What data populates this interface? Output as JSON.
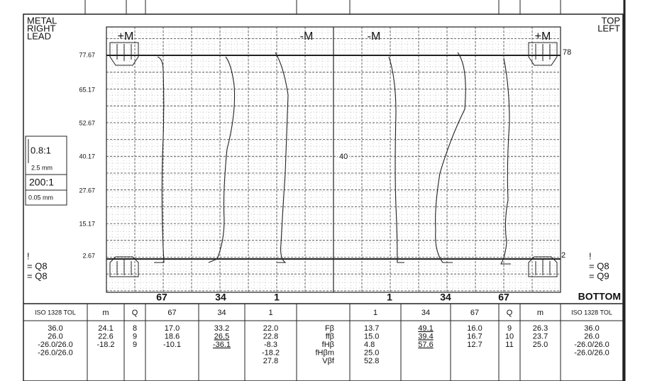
{
  "header": {
    "left_title": [
      "METAL",
      "RIGHT",
      "LEAD"
    ],
    "right_title": [
      "TOP",
      "LEFT"
    ]
  },
  "chart": {
    "y_labels": [
      "77.67",
      "65.17",
      "52.67",
      "40.17",
      "27.67",
      "15.17",
      "2.67"
    ],
    "markers": [
      "+M",
      "-M",
      "-M",
      "+M"
    ],
    "right_labels": [
      "78",
      "2"
    ],
    "center_label": "40",
    "scale": [
      "0.8:1",
      "2.5 mm",
      "200:1",
      "0.05 mm"
    ],
    "bottom_labels": [
      "67",
      "34",
      "1",
      "1",
      "34",
      "67"
    ],
    "bottom_title": "BOTTOM",
    "left_quality": [
      "!",
      "= Q8",
      "= Q8"
    ],
    "right_quality": [
      "!",
      "= Q8",
      "= Q9"
    ]
  },
  "table": {
    "header": [
      "ISO 1328 TOL",
      "m",
      "Q",
      "67",
      "34",
      "1",
      "1",
      "34",
      "67",
      "Q",
      "m",
      "ISO 1328 TOL"
    ],
    "columns": [
      [
        "36.0",
        "26.0",
        "-26.0/26.0",
        "-26.0/26.0"
      ],
      [
        "24.1",
        "22.6",
        "-18.2"
      ],
      [
        "8",
        "9",
        "9"
      ],
      [
        "17.0",
        "18.6",
        "-10.1"
      ],
      [
        "33.2",
        "26.5",
        "-36.1"
      ],
      [
        "22.0",
        "22.8",
        "-8.3",
        "-18.2",
        "27.8"
      ],
      [
        "Fβ",
        "ffβ",
        "fHβ",
        "fHβm",
        "Vβf"
      ],
      [
        "13.7",
        "15.0",
        "4.8",
        "25.0",
        "52.8"
      ],
      [
        "49.1",
        "39.4",
        "57.6"
      ],
      [
        "16.0",
        "16.7",
        "12.7"
      ],
      [
        "9",
        "10",
        "11"
      ],
      [
        "26.3",
        "23.7",
        "25.0"
      ],
      [
        "36.0",
        "26.0",
        "-26.0/26.0",
        "-26.0/26.0"
      ]
    ]
  }
}
